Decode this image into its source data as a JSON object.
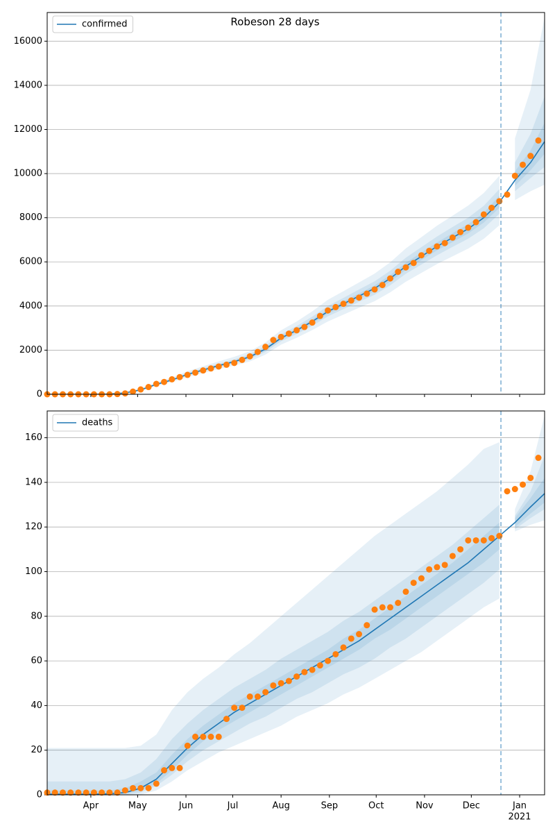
{
  "chart_data": [
    {
      "type": "line",
      "title": "Robeson 28 days",
      "legend": "upper left",
      "grid": true,
      "band_color": "#1f77b4",
      "forecast_start": 294,
      "xlim": [
        3,
        322
      ],
      "ylim": [
        0,
        17300
      ],
      "yticks": [
        0,
        2000,
        4000,
        6000,
        8000,
        10000,
        12000,
        14000,
        16000
      ],
      "x": [
        3,
        13,
        23,
        33,
        43,
        53,
        63,
        73,
        83,
        93,
        103,
        113,
        123,
        133,
        143,
        153,
        163,
        173,
        183,
        193,
        203,
        213,
        223,
        233,
        243,
        253,
        263,
        273,
        283,
        293,
        303,
        313,
        322
      ],
      "series": [
        {
          "name": "confirmed",
          "color": "#1f77b4",
          "values": [
            0,
            0,
            0,
            0,
            10,
            60,
            200,
            450,
            650,
            900,
            1100,
            1300,
            1480,
            1700,
            2050,
            2550,
            2900,
            3300,
            3750,
            4100,
            4450,
            4800,
            5250,
            5800,
            6250,
            6700,
            7100,
            7500,
            8000,
            8700,
            9700,
            10500,
            11450
          ]
        }
      ],
      "bands": [
        {
          "lower": [
            0,
            0,
            0,
            0,
            0,
            30,
            150,
            380,
            560,
            780,
            960,
            1140,
            1300,
            1490,
            1800,
            2250,
            2560,
            2910,
            3300,
            3610,
            3920,
            4220,
            4620,
            5100,
            5500,
            5900,
            6250,
            6600,
            7040,
            7660,
            8800,
            9200,
            9500
          ],
          "upper": [
            20,
            20,
            20,
            20,
            40,
            110,
            270,
            540,
            760,
            1040,
            1270,
            1490,
            1700,
            1950,
            2350,
            2900,
            3300,
            3760,
            4280,
            4670,
            5070,
            5470,
            5980,
            6610,
            7120,
            7640,
            8090,
            8550,
            9120,
            9900,
            11600,
            13800,
            17100
          ]
        },
        {
          "lower": [
            0,
            0,
            0,
            0,
            0,
            45,
            175,
            415,
            605,
            840,
            1030,
            1220,
            1390,
            1600,
            1920,
            2400,
            2730,
            3100,
            3530,
            3860,
            4190,
            4510,
            4940,
            5460,
            5880,
            6300,
            6680,
            7050,
            7520,
            8180,
            9200,
            9800,
            10300
          ],
          "upper": [
            10,
            10,
            10,
            10,
            25,
            80,
            230,
            490,
            700,
            970,
            1180,
            1390,
            1580,
            1820,
            2190,
            2720,
            3090,
            3520,
            4000,
            4370,
            4750,
            5120,
            5600,
            6190,
            6670,
            7150,
            7580,
            8000,
            8540,
            9300,
            10500,
            11800,
            13500
          ]
        },
        {
          "lower": [
            0,
            0,
            0,
            0,
            5,
            52,
            188,
            432,
            627,
            868,
            1063,
            1258,
            1434,
            1648,
            1988,
            2478,
            2820,
            3210,
            3650,
            3990,
            4330,
            4670,
            5100,
            5640,
            6080,
            6520,
            6900,
            7290,
            7780,
            8450,
            9450,
            10150,
            10900
          ],
          "upper": [
            5,
            5,
            5,
            5,
            15,
            68,
            212,
            468,
            673,
            932,
            1137,
            1342,
            1526,
            1752,
            2112,
            2622,
            2980,
            3390,
            3850,
            4210,
            4570,
            4930,
            5400,
            5960,
            6420,
            6880,
            7300,
            7710,
            8220,
            9000,
            10100,
            11050,
            12300
          ]
        }
      ],
      "observed": {
        "color": "#ff7f0e",
        "x": [
          3,
          8,
          13,
          18,
          23,
          28,
          33,
          38,
          43,
          48,
          53,
          58,
          63,
          68,
          73,
          78,
          83,
          88,
          93,
          98,
          103,
          108,
          113,
          118,
          123,
          128,
          133,
          138,
          143,
          148,
          153,
          158,
          163,
          168,
          173,
          178,
          183,
          188,
          193,
          198,
          203,
          208,
          213,
          218,
          223,
          228,
          233,
          238,
          243,
          248,
          253,
          258,
          263,
          268,
          273,
          278,
          283,
          288,
          293,
          298,
          303,
          308,
          313,
          318
        ],
        "values": [
          0,
          0,
          0,
          0,
          0,
          0,
          0,
          0,
          0,
          10,
          40,
          120,
          220,
          330,
          470,
          560,
          680,
          780,
          880,
          980,
          1080,
          1170,
          1260,
          1340,
          1420,
          1560,
          1720,
          1920,
          2150,
          2460,
          2600,
          2750,
          2900,
          3050,
          3250,
          3550,
          3800,
          3950,
          4100,
          4250,
          4380,
          4560,
          4750,
          4950,
          5250,
          5550,
          5750,
          5950,
          6300,
          6500,
          6700,
          6850,
          7100,
          7350,
          7550,
          7800,
          8150,
          8450,
          8750,
          9050,
          9900,
          10400,
          10800,
          11500
        ]
      }
    },
    {
      "type": "line",
      "legend": "upper left",
      "grid": true,
      "band_color": "#1f77b4",
      "forecast_start": 294,
      "xlim": [
        3,
        322
      ],
      "ylim": [
        0,
        172
      ],
      "yticks": [
        0,
        20,
        40,
        60,
        80,
        100,
        120,
        140,
        160
      ],
      "xticks": [
        {
          "value": 31,
          "label": "Apr"
        },
        {
          "value": 61,
          "label": "May"
        },
        {
          "value": 92,
          "label": "Jun"
        },
        {
          "value": 122,
          "label": "Jul"
        },
        {
          "value": 153,
          "label": "Aug"
        },
        {
          "value": 184,
          "label": "Sep"
        },
        {
          "value": 214,
          "label": "Oct"
        },
        {
          "value": 245,
          "label": "Nov"
        },
        {
          "value": 275,
          "label": "Dec"
        },
        {
          "value": 306,
          "label": "Jan",
          "sublabel": "2021"
        }
      ],
      "x": [
        3,
        13,
        23,
        33,
        43,
        53,
        63,
        73,
        83,
        93,
        103,
        113,
        123,
        133,
        143,
        153,
        163,
        173,
        183,
        193,
        203,
        213,
        223,
        233,
        243,
        253,
        263,
        273,
        283,
        293,
        303,
        313,
        322
      ],
      "series": [
        {
          "name": "deaths",
          "color": "#1f77b4",
          "values": [
            0.3,
            0.3,
            0.3,
            0.3,
            0.5,
            1,
            3,
            7,
            14,
            21,
            27,
            32,
            37,
            41,
            45,
            49,
            53,
            57,
            61,
            65,
            69,
            74,
            79,
            84,
            89,
            94,
            99,
            104,
            110,
            116,
            122,
            129,
            135
          ]
        }
      ],
      "bands": [
        {
          "lower": [
            0,
            0,
            0,
            0,
            0,
            0,
            0,
            2,
            6,
            11,
            15,
            19,
            22,
            25,
            28,
            31,
            35,
            38,
            41,
            45,
            48,
            52,
            56,
            60,
            64,
            69,
            74,
            79,
            84,
            88,
            118,
            121,
            123
          ],
          "upper": [
            21,
            21,
            21,
            21,
            21,
            21,
            22,
            27,
            38,
            46,
            52,
            57,
            63,
            68,
            74,
            80,
            86,
            92,
            98,
            104,
            110,
            116,
            121,
            126,
            131,
            136,
            142,
            148,
            155,
            158,
            128,
            145,
            170
          ]
        },
        {
          "lower": [
            0,
            0,
            0,
            0,
            0,
            0,
            1,
            4,
            9,
            15,
            20,
            24,
            28,
            32,
            35,
            39,
            43,
            46,
            50,
            54,
            57,
            61,
            66,
            70,
            75,
            80,
            85,
            90,
            95,
            101,
            119,
            124,
            128
          ],
          "upper": [
            6,
            6,
            6,
            6,
            6,
            7,
            10,
            16,
            25,
            32,
            38,
            43,
            48,
            52,
            56,
            61,
            65,
            69,
            73,
            78,
            82,
            87,
            92,
            97,
            102,
            107,
            112,
            118,
            124,
            130,
            125,
            136,
            152
          ]
        },
        {
          "lower": [
            0,
            0,
            0,
            0,
            0,
            0.5,
            2,
            5,
            11,
            18,
            24,
            29,
            33,
            37,
            41,
            45,
            49,
            53,
            57,
            61,
            65,
            70,
            74,
            79,
            84,
            89,
            94,
            99,
            104,
            110,
            120,
            126,
            131
          ],
          "upper": [
            2,
            2,
            2,
            2,
            2,
            3,
            6,
            10,
            18,
            25,
            31,
            36,
            41,
            45,
            49,
            53,
            57,
            61,
            65,
            70,
            74,
            79,
            84,
            89,
            94,
            99,
            104,
            110,
            116,
            122,
            124,
            133,
            142
          ]
        }
      ],
      "observed": {
        "color": "#ff7f0e",
        "x": [
          3,
          8,
          13,
          18,
          23,
          28,
          33,
          38,
          43,
          48,
          53,
          58,
          63,
          68,
          73,
          78,
          83,
          88,
          93,
          98,
          103,
          108,
          113,
          118,
          123,
          128,
          133,
          138,
          143,
          148,
          153,
          158,
          163,
          168,
          173,
          178,
          183,
          188,
          193,
          198,
          203,
          208,
          213,
          218,
          223,
          228,
          233,
          238,
          243,
          248,
          253,
          258,
          263,
          268,
          273,
          278,
          283,
          288,
          293,
          298,
          303,
          308,
          313,
          318
        ],
        "values": [
          1,
          1,
          1,
          1,
          1,
          1,
          1,
          1,
          1,
          1,
          2,
          3,
          3,
          3,
          5,
          11,
          12,
          12,
          22,
          26,
          26,
          26,
          26,
          34,
          39,
          39,
          44,
          44,
          46,
          49,
          50,
          51,
          53,
          55,
          56,
          58,
          60,
          63,
          66,
          70,
          72,
          76,
          83,
          84,
          84,
          86,
          91,
          95,
          97,
          101,
          102,
          103,
          107,
          110,
          114,
          114,
          114,
          115,
          116,
          136,
          137,
          139,
          142,
          151
        ]
      }
    }
  ]
}
